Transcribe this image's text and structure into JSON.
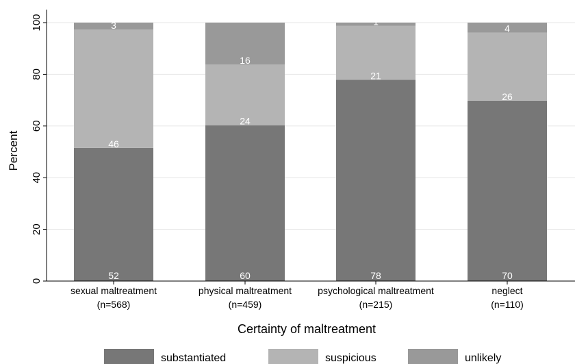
{
  "chart_data": {
    "type": "bar",
    "stacked": true,
    "categories": [
      [
        "sexual maltreatment",
        "(n=568)"
      ],
      [
        "physical maltreatment",
        "(n=459)"
      ],
      [
        "psychological maltreatment",
        "(n=215)"
      ],
      [
        "neglect",
        "(n=110)"
      ]
    ],
    "series": [
      {
        "name": "substantiated",
        "values": [
          51.5,
          60.3,
          77.9,
          69.8
        ],
        "labels": [
          "52",
          "60",
          "78",
          "70"
        ],
        "color": "#777777"
      },
      {
        "name": "suspicious",
        "values": [
          45.8,
          23.5,
          20.9,
          26.3
        ],
        "labels": [
          "46",
          "24",
          "21",
          "26"
        ],
        "color": "#b4b4b4"
      },
      {
        "name": "unlikely",
        "values": [
          2.7,
          16.2,
          1.2,
          3.9
        ],
        "labels": [
          "3",
          "16",
          "1",
          "4"
        ],
        "color": "#999999"
      }
    ],
    "xlabel": "Certainty of maltreatment",
    "ylabel": "Percent",
    "ylim": [
      0,
      100
    ],
    "yticks": [
      0,
      20,
      40,
      60,
      80,
      100
    ],
    "grid": true,
    "legend_position": "bottom"
  }
}
